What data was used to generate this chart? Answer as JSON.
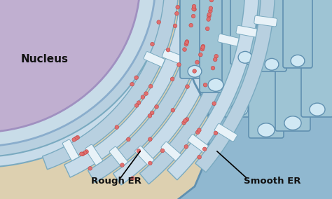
{
  "bg_color": "#ddd0b0",
  "nucleus_color": "#c0afd0",
  "nucleus_edge": "#a090c0",
  "nuclear_envelope_color": "#c8dce8",
  "nuclear_envelope_edge": "#8aadcc",
  "er_fill": "#b8d0e0",
  "er_fill2": "#c8dcea",
  "er_edge": "#7aaac0",
  "er_lumen": "#e8f2f8",
  "smooth_base_fill": "#90b8d0",
  "smooth_base_edge": "#6090b0",
  "smooth_tube_fill": "#9ec4d4",
  "smooth_tube_edge": "#6090b0",
  "smooth_lumen": "#d0e8f4",
  "vesicle_fill": "#ece8c8",
  "ribosome_color": "#e07070",
  "ribosome_edge": "#c04040",
  "label_color": "#111111",
  "nucleus_label": "Nucleus",
  "rough_label": "Rough ER",
  "smooth_label": "Smooth ER",
  "figsize": [
    4.74,
    2.84
  ],
  "dpi": 100
}
